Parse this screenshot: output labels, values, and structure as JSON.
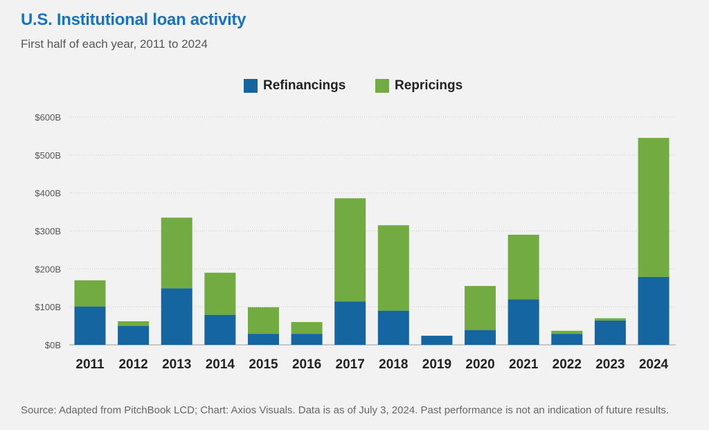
{
  "header": {
    "title": "U.S. Institutional loan activity",
    "subtitle": "First half of each year, 2011 to 2024"
  },
  "footer": {
    "source": "Source: Adapted from PitchBook LCD; Chart: Axios Visuals. Data is as of July 3, 2024. Past performance is not an indication of future results."
  },
  "colors": {
    "refinancings": "#1565a0",
    "repricings": "#72ab42",
    "title": "#1a73c0"
  },
  "chart_data": {
    "type": "bar",
    "stacked": true,
    "categories": [
      "2011",
      "2012",
      "2013",
      "2014",
      "2015",
      "2016",
      "2017",
      "2018",
      "2019",
      "2020",
      "2021",
      "2022",
      "2023",
      "2024"
    ],
    "series": [
      {
        "name": "Refinancings",
        "values": [
          101,
          50,
          149,
          79,
          29,
          29,
          114,
          90,
          24,
          39,
          120,
          29,
          64,
          179
        ]
      },
      {
        "name": "Repricings",
        "values": [
          69,
          12,
          186,
          111,
          70,
          31,
          272,
          225,
          0,
          116,
          170,
          8,
          6,
          366
        ]
      }
    ],
    "title": "U.S. Institutional loan activity",
    "subtitle": "First half of each year, 2011 to 2024",
    "ylim": [
      0,
      600
    ],
    "yticks": [
      {
        "value": 0,
        "label": "$0B"
      },
      {
        "value": 100,
        "label": "$100B"
      },
      {
        "value": 200,
        "label": "$200B"
      },
      {
        "value": 300,
        "label": "$300B"
      },
      {
        "value": 400,
        "label": "$400B"
      },
      {
        "value": 500,
        "label": "$500B"
      },
      {
        "value": 600,
        "label": "$600B"
      }
    ],
    "grid": true,
    "legend": "top-center"
  }
}
